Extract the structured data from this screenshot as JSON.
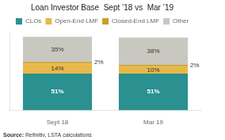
{
  "chart_data": {
    "type": "bar",
    "title": "Loan Investor Base  Sept ’18 vs  Mar ’19",
    "categories": [
      "Sept 18",
      "Mar 19"
    ],
    "series": [
      {
        "name": "CLOs",
        "color": "#2a9090",
        "values": [
          51,
          51
        ],
        "value_labels": [
          "51%",
          "51%"
        ]
      },
      {
        "name": "Open-End LMF",
        "color": "#e8b84b",
        "values": [
          14,
          10
        ],
        "value_labels": [
          "14%",
          "10%"
        ]
      },
      {
        "name": "Closed-End LMF",
        "color": "#c8a028",
        "values": [
          2,
          2
        ],
        "value_labels": [
          "2%",
          "2%"
        ]
      },
      {
        "name": "Other",
        "color": "#c8c8c0",
        "values": [
          35,
          38
        ],
        "value_labels": [
          "35%",
          "38%"
        ]
      }
    ],
    "ylim": [
      0,
      108
    ],
    "stacked": true,
    "data_labels": true,
    "tick_labels": "x",
    "grid": false,
    "legend": "top",
    "annotations": [
      "Source: Refinitiv, LSTA calculations"
    ]
  }
}
